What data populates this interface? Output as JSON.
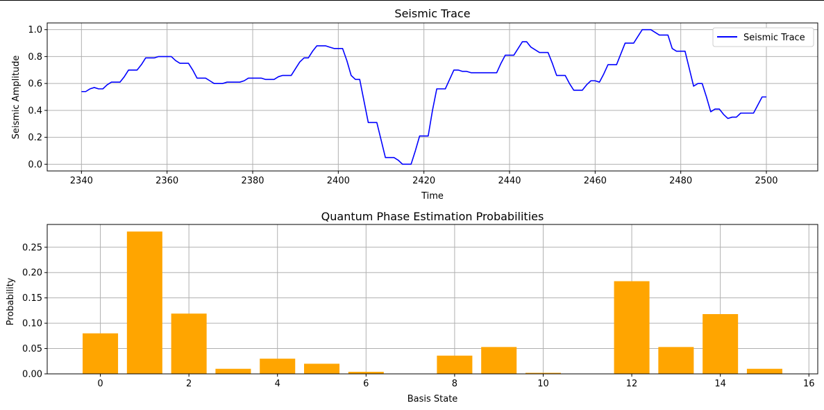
{
  "chart_data": [
    {
      "type": "line",
      "title": "Seismic Trace",
      "xlabel": "Time",
      "ylabel": "Seismic Amplitude",
      "xlim": [
        2332,
        2512
      ],
      "ylim": [
        -0.05,
        1.05
      ],
      "xticks": [
        2340,
        2360,
        2380,
        2400,
        2420,
        2440,
        2460,
        2480,
        2500
      ],
      "yticks": [
        0.0,
        0.2,
        0.4,
        0.6,
        0.8,
        1.0
      ],
      "grid": true,
      "legend": "top-right",
      "series": [
        {
          "name": "Seismic Trace",
          "color": "#0000ff",
          "x": [
            2340,
            2341,
            2342,
            2343,
            2344,
            2345,
            2346,
            2347,
            2348,
            2349,
            2350,
            2351,
            2352,
            2353,
            2354,
            2355,
            2356,
            2357,
            2358,
            2359,
            2360,
            2361,
            2362,
            2363,
            2364,
            2365,
            2366,
            2367,
            2368,
            2369,
            2370,
            2371,
            2372,
            2373,
            2374,
            2375,
            2376,
            2377,
            2378,
            2379,
            2380,
            2381,
            2382,
            2383,
            2384,
            2385,
            2386,
            2387,
            2388,
            2389,
            2390,
            2391,
            2392,
            2393,
            2394,
            2395,
            2396,
            2397,
            2398,
            2399,
            2400,
            2401,
            2402,
            2403,
            2404,
            2405,
            2406,
            2407,
            2408,
            2409,
            2410,
            2411,
            2412,
            2413,
            2414,
            2415,
            2416,
            2417,
            2418,
            2419,
            2420,
            2421,
            2422,
            2423,
            2424,
            2425,
            2426,
            2427,
            2428,
            2429,
            2430,
            2431,
            2432,
            2433,
            2434,
            2435,
            2436,
            2437,
            2438,
            2439,
            2440,
            2441,
            2442,
            2443,
            2444,
            2445,
            2446,
            2447,
            2448,
            2449,
            2450,
            2451,
            2452,
            2453,
            2454,
            2455,
            2456,
            2457,
            2458,
            2459,
            2460,
            2461,
            2462,
            2463,
            2464,
            2465,
            2466,
            2467,
            2468,
            2469,
            2470,
            2471,
            2472,
            2473,
            2474,
            2475,
            2476,
            2477,
            2478,
            2479,
            2480,
            2481,
            2482,
            2483,
            2484,
            2485,
            2486,
            2487,
            2488,
            2489,
            2490,
            2491,
            2492,
            2493,
            2494,
            2495,
            2496,
            2497,
            2498,
            2499,
            2500
          ],
          "y": [
            0.54,
            0.54,
            0.56,
            0.57,
            0.56,
            0.56,
            0.59,
            0.61,
            0.61,
            0.61,
            0.65,
            0.7,
            0.7,
            0.7,
            0.74,
            0.79,
            0.79,
            0.79,
            0.8,
            0.8,
            0.8,
            0.8,
            0.77,
            0.75,
            0.75,
            0.75,
            0.7,
            0.64,
            0.64,
            0.64,
            0.62,
            0.6,
            0.6,
            0.6,
            0.61,
            0.61,
            0.61,
            0.61,
            0.62,
            0.64,
            0.64,
            0.64,
            0.64,
            0.63,
            0.63,
            0.63,
            0.65,
            0.66,
            0.66,
            0.66,
            0.71,
            0.76,
            0.79,
            0.79,
            0.84,
            0.88,
            0.88,
            0.88,
            0.87,
            0.86,
            0.86,
            0.86,
            0.77,
            0.66,
            0.63,
            0.63,
            0.47,
            0.31,
            0.31,
            0.31,
            0.18,
            0.05,
            0.05,
            0.05,
            0.03,
            0.0,
            0.0,
            0.0,
            0.1,
            0.21,
            0.21,
            0.21,
            0.4,
            0.56,
            0.56,
            0.56,
            0.63,
            0.7,
            0.7,
            0.69,
            0.69,
            0.68,
            0.68,
            0.68,
            0.68,
            0.68,
            0.68,
            0.68,
            0.75,
            0.81,
            0.81,
            0.81,
            0.86,
            0.91,
            0.91,
            0.87,
            0.85,
            0.83,
            0.83,
            0.83,
            0.75,
            0.66,
            0.66,
            0.66,
            0.6,
            0.55,
            0.55,
            0.55,
            0.59,
            0.62,
            0.62,
            0.61,
            0.67,
            0.74,
            0.74,
            0.74,
            0.82,
            0.9,
            0.9,
            0.9,
            0.95,
            1.0,
            1.0,
            1.0,
            0.98,
            0.96,
            0.96,
            0.96,
            0.86,
            0.84,
            0.84,
            0.84,
            0.71,
            0.58,
            0.6,
            0.6,
            0.5,
            0.39,
            0.41,
            0.41,
            0.37,
            0.34,
            0.35,
            0.35,
            0.38,
            0.38,
            0.38,
            0.38,
            0.44,
            0.5,
            0.5
          ]
        }
      ]
    },
    {
      "type": "bar",
      "title": "Quantum Phase Estimation Probabilities",
      "xlabel": "Basis State",
      "ylabel": "Probability",
      "xlim": [
        -1.2,
        16.2
      ],
      "ylim": [
        0,
        0.295
      ],
      "xticks": [
        0,
        2,
        4,
        6,
        8,
        10,
        12,
        14,
        16
      ],
      "yticks": [
        "0.00",
        "0.05",
        "0.10",
        "0.15",
        "0.20",
        "0.25"
      ],
      "grid": true,
      "color": "#ffa500",
      "categories": [
        0,
        1,
        2,
        3,
        4,
        5,
        6,
        7,
        8,
        9,
        10,
        11,
        12,
        13,
        14,
        15
      ],
      "values": [
        0.08,
        0.281,
        0.119,
        0.01,
        0.03,
        0.02,
        0.004,
        0.0,
        0.036,
        0.053,
        0.002,
        0.0,
        0.183,
        0.053,
        0.118,
        0.01
      ]
    }
  ]
}
